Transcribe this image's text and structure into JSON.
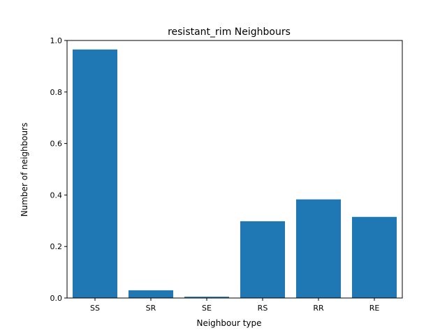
{
  "chart_data": {
    "type": "bar",
    "title": "resistant_rim Neighbours",
    "xlabel": "Neighbour type",
    "ylabel": "Number of neighbours",
    "categories": [
      "SS",
      "SR",
      "SE",
      "RS",
      "RR",
      "RE"
    ],
    "values": [
      0.965,
      0.03,
      0.005,
      0.298,
      0.383,
      0.315
    ],
    "ylim": [
      0,
      1.0
    ],
    "yticks": [
      0.0,
      0.2,
      0.4,
      0.6,
      0.8,
      1.0
    ],
    "ytick_labels": [
      "0.0",
      "0.2",
      "0.4",
      "0.6",
      "0.8",
      "1.0"
    ],
    "bar_color": "#1f77b4",
    "grid": false,
    "legend": false
  }
}
